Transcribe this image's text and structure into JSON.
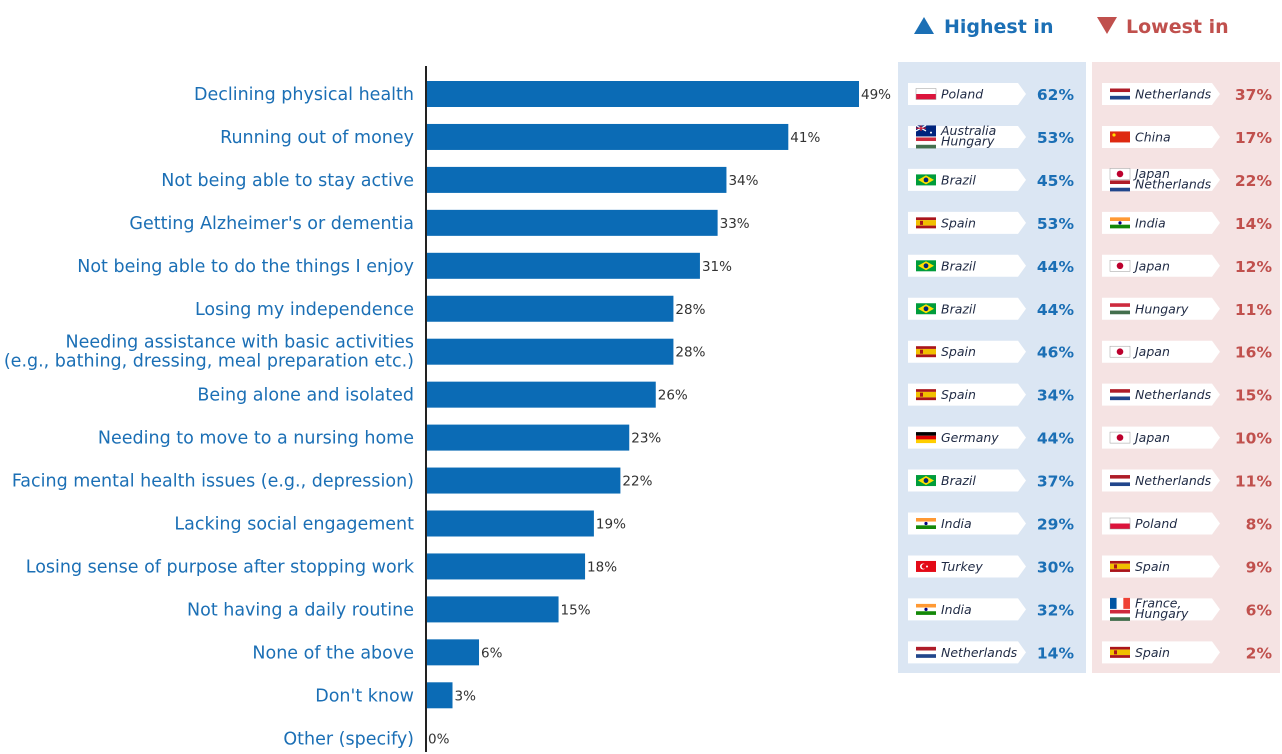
{
  "colors": {
    "bar": "#0b6bb5",
    "label": "#1b6fb5",
    "high": "#1b6fb5",
    "low": "#c0504d",
    "high_panel": "#dbe6f3",
    "low_panel": "#f5e3e3"
  },
  "headers": {
    "high": {
      "icon": "triangle-up-icon",
      "label": "Highest in"
    },
    "low": {
      "icon": "triangle-down-icon",
      "label": "Lowest in"
    }
  },
  "chart_data": {
    "type": "bar",
    "orientation": "horizontal",
    "unit": "%",
    "categories": [
      "Declining physical health",
      "Running out of money",
      "Not being able to stay active",
      "Getting Alzheimer's or dementia",
      "Not being able to do the things I enjoy",
      "Losing my independence",
      "Needing assistance with basic activities\n(e.g., bathing, dressing, meal preparation etc.)",
      "Being alone and isolated",
      "Needing to move to a nursing home",
      "Facing mental health issues (e.g., depression)",
      "Lacking social engagement",
      "Losing sense of purpose after stopping work",
      "Not having a daily routine",
      "None of the above",
      "Don't know",
      "Other (specify)"
    ],
    "values": [
      49,
      41,
      34,
      33,
      31,
      28,
      28,
      26,
      23,
      22,
      19,
      18,
      15,
      6,
      3,
      0
    ],
    "value_labels": [
      "49%",
      "41%",
      "34%",
      "33%",
      "31%",
      "28%",
      "28%",
      "26%",
      "23%",
      "22%",
      "19%",
      "18%",
      "15%",
      "6%",
      "3%",
      "0%"
    ],
    "xlim": [
      0,
      49
    ],
    "grid": false,
    "highest": [
      {
        "countries": [
          "Poland"
        ],
        "flag": "poland-flag-icon",
        "value": "62%"
      },
      {
        "countries": [
          "Australia",
          "Hungary"
        ],
        "flag": "australia-hungary-flag-icon",
        "value": "53%"
      },
      {
        "countries": [
          "Brazil"
        ],
        "flag": "brazil-flag-icon",
        "value": "45%"
      },
      {
        "countries": [
          "Spain"
        ],
        "flag": "spain-flag-icon",
        "value": "53%"
      },
      {
        "countries": [
          "Brazil"
        ],
        "flag": "brazil-flag-icon",
        "value": "44%"
      },
      {
        "countries": [
          "Brazil"
        ],
        "flag": "brazil-flag-icon",
        "value": "44%"
      },
      {
        "countries": [
          "Spain"
        ],
        "flag": "spain-flag-icon",
        "value": "46%"
      },
      {
        "countries": [
          "Spain"
        ],
        "flag": "spain-flag-icon",
        "value": "34%"
      },
      {
        "countries": [
          "Germany"
        ],
        "flag": "germany-flag-icon",
        "value": "44%"
      },
      {
        "countries": [
          "Brazil"
        ],
        "flag": "brazil-flag-icon",
        "value": "37%"
      },
      {
        "countries": [
          "India"
        ],
        "flag": "india-flag-icon",
        "value": "29%"
      },
      {
        "countries": [
          "Turkey"
        ],
        "flag": "turkey-flag-icon",
        "value": "30%"
      },
      {
        "countries": [
          "India"
        ],
        "flag": "india-flag-icon",
        "value": "32%"
      },
      {
        "countries": [
          "Netherlands"
        ],
        "flag": "netherlands-flag-icon",
        "value": "14%"
      }
    ],
    "lowest": [
      {
        "countries": [
          "Netherlands"
        ],
        "flag": "netherlands-flag-icon",
        "value": "37%"
      },
      {
        "countries": [
          "China"
        ],
        "flag": "china-flag-icon",
        "value": "17%"
      },
      {
        "countries": [
          "Japan",
          "Netherlands"
        ],
        "flag": "japan-netherlands-flag-icon",
        "value": "22%"
      },
      {
        "countries": [
          "India"
        ],
        "flag": "india-flag-icon",
        "value": "14%"
      },
      {
        "countries": [
          "Japan"
        ],
        "flag": "japan-flag-icon",
        "value": "12%"
      },
      {
        "countries": [
          "Hungary"
        ],
        "flag": "hungary-flag-icon",
        "value": "11%"
      },
      {
        "countries": [
          "Japan"
        ],
        "flag": "japan-flag-icon",
        "value": "16%"
      },
      {
        "countries": [
          "Netherlands"
        ],
        "flag": "netherlands-flag-icon",
        "value": "15%"
      },
      {
        "countries": [
          "Japan"
        ],
        "flag": "japan-flag-icon",
        "value": "10%"
      },
      {
        "countries": [
          "Netherlands"
        ],
        "flag": "netherlands-flag-icon",
        "value": "11%"
      },
      {
        "countries": [
          "Poland"
        ],
        "flag": "poland-flag-icon",
        "value": "8%"
      },
      {
        "countries": [
          "Spain"
        ],
        "flag": "spain-flag-icon",
        "value": "9%"
      },
      {
        "countries": [
          "France,",
          "Hungary"
        ],
        "flag": "france-hungary-flag-icon",
        "value": "6%"
      },
      {
        "countries": [
          "Spain"
        ],
        "flag": "spain-flag-icon",
        "value": "2%"
      }
    ]
  }
}
